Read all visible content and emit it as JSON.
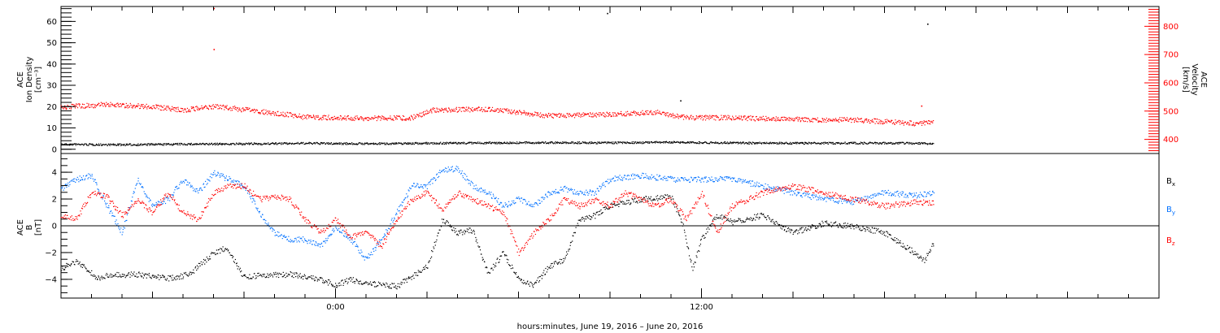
{
  "chart_data": [
    {
      "type": "scatter",
      "ylabel_lines": [
        "ACE",
        "Ion Density",
        "[cm⁻³]"
      ],
      "y2label_lines": [
        "ACE",
        "Velocity",
        "[km/s]"
      ],
      "x_range_hours": [
        -9,
        27
      ],
      "ylim": [
        -2,
        67
      ],
      "y2lim": [
        350,
        870
      ],
      "y_ticks": [
        "0",
        "10",
        "20",
        "30",
        "40",
        "50",
        "60"
      ],
      "y_tick_values": [
        0,
        10,
        20,
        30,
        40,
        50,
        60
      ],
      "y2_ticks": [
        "400",
        "500",
        "600",
        "700",
        "800"
      ],
      "y2_tick_values": [
        400,
        500,
        600,
        700,
        800
      ],
      "series": [
        {
          "color": "#000000",
          "axis": "left",
          "x": [
            -9,
            -7,
            -5,
            -3,
            -1,
            1,
            3,
            5,
            7,
            9,
            11,
            13,
            15,
            17,
            19,
            19.6
          ],
          "values": [
            2.5,
            2.3,
            2.6,
            2.7,
            3.0,
            2.8,
            3.0,
            3.2,
            3.3,
            3.2,
            3.5,
            3.2,
            3.0,
            3.1,
            3.0,
            2.8
          ]
        },
        {
          "color": "#ff0000",
          "axis": "right",
          "x": [
            -9,
            -7.5,
            -6,
            -5,
            -4,
            -2,
            -1,
            0,
            1,
            2.5,
            3.2,
            5,
            7,
            9,
            10.5,
            11.5,
            13,
            15,
            17,
            19,
            19.6
          ],
          "values": [
            515,
            525,
            517,
            505,
            518,
            495,
            480,
            478,
            476,
            478,
            505,
            508,
            485,
            490,
            498,
            478,
            478,
            472,
            470,
            458,
            462
          ]
        }
      ],
      "outliers": [
        {
          "x": -4.0,
          "y2": 865
        },
        {
          "x": -4.0,
          "y2": 720
        },
        {
          "x": 8.9,
          "y": 64
        },
        {
          "x": 19.4,
          "y": 59
        },
        {
          "x": 11.3,
          "y": 23
        },
        {
          "x": 19.2,
          "y2": 520
        }
      ]
    },
    {
      "type": "scatter",
      "ylabel_lines": [
        "ACE",
        "B",
        "[nT]"
      ],
      "x_range_hours": [
        -9,
        27
      ],
      "ylim": [
        -5.4,
        5.4
      ],
      "y_ticks": [
        "−4",
        "−2",
        "0",
        "2",
        "4"
      ],
      "y_tick_values": [
        -4,
        -2,
        0,
        2,
        4
      ],
      "zero_line": true,
      "series": [
        {
          "name": "Bx",
          "label_main": "B",
          "label_sub": "x",
          "color": "#000000",
          "x": [
            -9,
            -8.5,
            -7.8,
            -7.5,
            -6.5,
            -5.5,
            -4.8,
            -4.0,
            -3.6,
            -3.0,
            -2.5,
            -1.5,
            -0.5,
            0.0,
            0.5,
            1.2,
            2.0,
            3.0,
            3.5,
            4.0,
            4.5,
            5.0,
            5.5,
            6.0,
            6.5,
            7.0,
            7.5,
            8.0,
            8.5,
            9.0,
            10.0,
            11.0,
            11.4,
            11.7,
            12.0,
            12.5,
            13.0,
            14.0,
            15.0,
            16.0,
            17.0,
            18.0,
            19.0,
            19.3,
            19.6
          ],
          "values": [
            -3.2,
            -2.6,
            -3.9,
            -3.7,
            -3.6,
            -3.9,
            -3.6,
            -2.0,
            -1.6,
            -3.8,
            -3.7,
            -3.6,
            -4.0,
            -4.4,
            -4.0,
            -4.3,
            -4.5,
            -3.0,
            0.5,
            -0.5,
            -0.3,
            -3.5,
            -2.0,
            -4.0,
            -4.4,
            -3.0,
            -2.5,
            0.5,
            0.8,
            1.5,
            2.0,
            2.2,
            0.0,
            -3.2,
            -1.0,
            0.8,
            0.3,
            0.8,
            -0.5,
            0.2,
            0.0,
            -0.5,
            -2.0,
            -2.6,
            -1.3
          ]
        },
        {
          "name": "By",
          "label_main": "B",
          "label_sub": "y",
          "color": "#0070ff",
          "x": [
            -9,
            -8.5,
            -8.0,
            -7.5,
            -7.0,
            -6.5,
            -6.0,
            -5.5,
            -5.0,
            -4.5,
            -4.0,
            -3.5,
            -3.0,
            -2.5,
            -2.0,
            -1.5,
            -1.0,
            -0.5,
            0.0,
            0.5,
            1.0,
            1.5,
            2.0,
            2.5,
            3.0,
            3.5,
            4.0,
            4.5,
            5.0,
            5.5,
            6.0,
            6.5,
            7.0,
            7.5,
            8.0,
            8.5,
            9.0,
            10.0,
            11.0,
            12.0,
            13.0,
            14.0,
            15.0,
            16.0,
            17.0,
            18.0,
            19.0,
            19.6
          ],
          "values": [
            2.8,
            3.5,
            3.8,
            1.5,
            -0.5,
            3.5,
            1.5,
            2.0,
            3.5,
            2.5,
            4.0,
            3.5,
            3.0,
            1.0,
            -0.5,
            -1.0,
            -1.0,
            -1.5,
            0.0,
            -1.0,
            -2.5,
            -1.0,
            1.0,
            3.0,
            3.0,
            4.2,
            4.3,
            3.0,
            2.5,
            1.5,
            2.0,
            1.5,
            2.5,
            2.8,
            2.5,
            2.5,
            3.5,
            3.8,
            3.5,
            3.5,
            3.5,
            3.0,
            2.5,
            2.0,
            1.8,
            2.5,
            2.3,
            2.5
          ]
        },
        {
          "name": "Bz",
          "label_main": "B",
          "label_sub": "z",
          "color": "#ff0000",
          "x": [
            -9,
            -8.5,
            -8.0,
            -7.5,
            -7.0,
            -6.5,
            -6.0,
            -5.5,
            -5.0,
            -4.5,
            -4.0,
            -3.5,
            -3.0,
            -2.5,
            -2.0,
            -1.5,
            -1.0,
            -0.5,
            0.0,
            0.5,
            1.0,
            1.5,
            2.0,
            2.5,
            3.0,
            3.5,
            4.0,
            4.5,
            5.0,
            5.5,
            6.0,
            6.5,
            7.0,
            7.5,
            8.0,
            8.5,
            9.0,
            9.5,
            10.0,
            10.5,
            11.0,
            11.5,
            12.0,
            12.5,
            13.0,
            14.0,
            15.0,
            16.0,
            17.0,
            18.0,
            19.0,
            19.6
          ],
          "values": [
            0.8,
            0.6,
            2.5,
            2.2,
            0.8,
            2.0,
            1.0,
            2.5,
            1.0,
            0.5,
            2.5,
            3.0,
            3.0,
            2.0,
            2.2,
            2.0,
            0.5,
            -0.5,
            0.5,
            -0.8,
            -0.5,
            -1.5,
            0.5,
            2.0,
            2.5,
            1.2,
            2.5,
            2.0,
            1.5,
            1.0,
            -2.0,
            -0.5,
            0.5,
            2.0,
            1.5,
            2.0,
            1.5,
            2.5,
            2.0,
            1.5,
            2.0,
            0.5,
            2.5,
            -0.5,
            1.5,
            2.5,
            3.0,
            2.5,
            2.0,
            1.5,
            1.8,
            1.7
          ]
        }
      ]
    }
  ],
  "x_axis": {
    "tick_labels": [
      "0:00",
      "12:00"
    ],
    "tick_hours": [
      0,
      12
    ],
    "xlabel": "hours:minutes, June 19, 2016 – June 20, 2016"
  },
  "colors": {
    "black": "#000000",
    "red": "#ff0000",
    "blue": "#0070ff"
  }
}
